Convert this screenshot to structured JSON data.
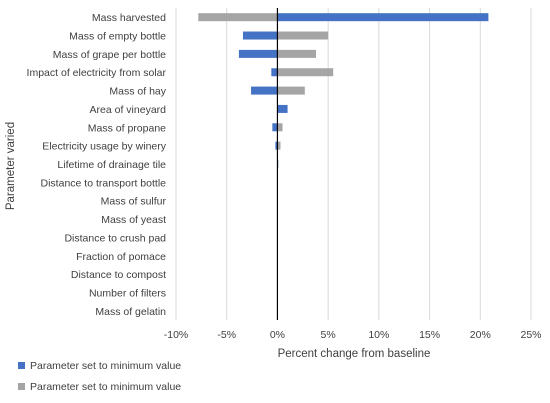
{
  "chart_data": {
    "type": "bar",
    "orientation": "horizontal",
    "xlabel": "Percent change from baseline",
    "ylabel": "Parameter varied",
    "xlim": [
      -10,
      25
    ],
    "xticks": [
      -10,
      -5,
      0,
      5,
      10,
      15,
      20,
      25
    ],
    "xtick_labels": [
      "-10%",
      "-5%",
      "0%",
      "5%",
      "10%",
      "15%",
      "20%",
      "25%"
    ],
    "grid": "vertical",
    "legend_position": "bottom-left",
    "categories": [
      "Mass harvested",
      "Mass of empty bottle",
      "Mass of grape per bottle",
      "Impact of electricity from solar",
      "Mass of hay",
      "Area of vineyard",
      "Mass of propane",
      "Electricity usage by winery",
      "Lifetime of drainage tile",
      "Distance to transport bottle",
      "Mass of sulfur",
      "Mass of yeast",
      "Distance to crush pad",
      "Fraction of pomace",
      "Distance to compost",
      "Number of filters",
      "Mass of gelatin"
    ],
    "series": [
      {
        "name": "Parameter set to minimum value",
        "color": "#4472c4",
        "values": [
          20.8,
          -3.4,
          -3.8,
          -0.6,
          -2.6,
          1.0,
          -0.5,
          -0.2,
          0.05,
          0,
          0,
          0,
          0,
          0,
          0,
          0,
          0
        ]
      },
      {
        "name": "Parameter set to minimum value",
        "color": "#a5a5a5",
        "values": [
          -7.8,
          5.0,
          3.8,
          5.5,
          2.7,
          0,
          0.5,
          0.3,
          0.05,
          0,
          0,
          0,
          0,
          0,
          0,
          0,
          0
        ]
      }
    ]
  }
}
